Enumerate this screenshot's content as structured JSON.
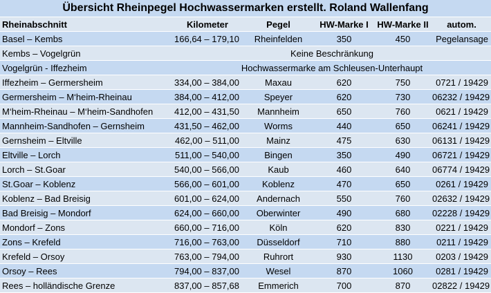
{
  "title": "Übersicht Rheinpegel Hochwassermarken  erstellt. Roland Wallenfang",
  "header": {
    "abschnitt": "Rheinabschnitt",
    "kilometer": "Kilometer",
    "pegel": "Pegel",
    "hw1": "HW-Marke I",
    "hw2": "HW-Marke II",
    "autom": "autom."
  },
  "special_rows": [
    {
      "abschnitt": "Kembs – Vogelgrün",
      "note": "Keine Beschränkung"
    },
    {
      "abschnitt": "Vogelgrün - Iffezheim",
      "note": "Hochwassermarke am Schleusen-Unterhaupt"
    }
  ],
  "rows": [
    {
      "abschnitt": "Basel – Kembs",
      "km": "166,64 – 179,10",
      "pegel": "Rheinfelden",
      "hw1": "350",
      "hw2": "450",
      "autom": "Pegelansage"
    },
    {
      "abschnitt": "Iffezheim – Germersheim",
      "km": "334,00 – 384,00",
      "pegel": "Maxau",
      "hw1": "620",
      "hw2": "750",
      "autom": "0721 / 19429"
    },
    {
      "abschnitt": "Germersheim – M‘heim-Rheinau",
      "km": "384,00 – 412,00",
      "pegel": "Speyer",
      "hw1": "620",
      "hw2": "730",
      "autom": "06232 / 19429"
    },
    {
      "abschnitt": "M‘heim-Rheinau – M‘heim-Sandhofen",
      "km": "412,00 – 431,50",
      "pegel": "Mannheim",
      "hw1": "650",
      "hw2": "760",
      "autom": "0621 / 19429"
    },
    {
      "abschnitt": "Mannheim-Sandhofen – Gernsheim",
      "km": "431,50 – 462,00",
      "pegel": "Worms",
      "hw1": "440",
      "hw2": "650",
      "autom": "06241 / 19429"
    },
    {
      "abschnitt": "Gernsheim – Eltville",
      "km": "462,00 – 511,00",
      "pegel": "Mainz",
      "hw1": "475",
      "hw2": "630",
      "autom": "06131 / 19429"
    },
    {
      "abschnitt": "Eltville – Lorch",
      "km": "511,00 – 540,00",
      "pegel": "Bingen",
      "hw1": "350",
      "hw2": "490",
      "autom": "06721 / 19429"
    },
    {
      "abschnitt": "Lorch – St.Goar",
      "km": "540,00 – 566,00",
      "pegel": "Kaub",
      "hw1": "460",
      "hw2": "640",
      "autom": "06774 / 19429"
    },
    {
      "abschnitt": "St.Goar – Koblenz",
      "km": "566,00 – 601,00",
      "pegel": "Koblenz",
      "hw1": "470",
      "hw2": "650",
      "autom": "0261 / 19429"
    },
    {
      "abschnitt": "Koblenz – Bad Breisig",
      "km": "601,00 – 624,00",
      "pegel": "Andernach",
      "hw1": "550",
      "hw2": "760",
      "autom": "02632 / 19429"
    },
    {
      "abschnitt": "Bad Breisig – Mondorf",
      "km": "624,00 – 660,00",
      "pegel": "Oberwinter",
      "hw1": "490",
      "hw2": "680",
      "autom": "02228 / 19429"
    },
    {
      "abschnitt": "Mondorf – Zons",
      "km": "660,00 – 716,00",
      "pegel": "Köln",
      "hw1": "620",
      "hw2": "830",
      "autom": "0221 / 19429"
    },
    {
      "abschnitt": "Zons – Krefeld",
      "km": "716,00 – 763,00",
      "pegel": "Düsseldorf",
      "hw1": "710",
      "hw2": "880",
      "autom": "0211 / 19429"
    },
    {
      "abschnitt": "Krefeld – Orsoy",
      "km": "763,00 – 794,00",
      "pegel": "Ruhrort",
      "hw1": "930",
      "hw2": "1130",
      "autom": "0203 / 19429"
    },
    {
      "abschnitt": "Orsoy – Rees",
      "km": "794,00 – 837,00",
      "pegel": "Wesel",
      "hw1": "870",
      "hw2": "1060",
      "autom": "0281 / 19429"
    },
    {
      "abschnitt": "Rees – holländische Grenze",
      "km": "837,00 – 857,68",
      "pegel": "Emmerich",
      "hw1": "700",
      "hw2": "870",
      "autom": "02822 / 19429"
    }
  ]
}
